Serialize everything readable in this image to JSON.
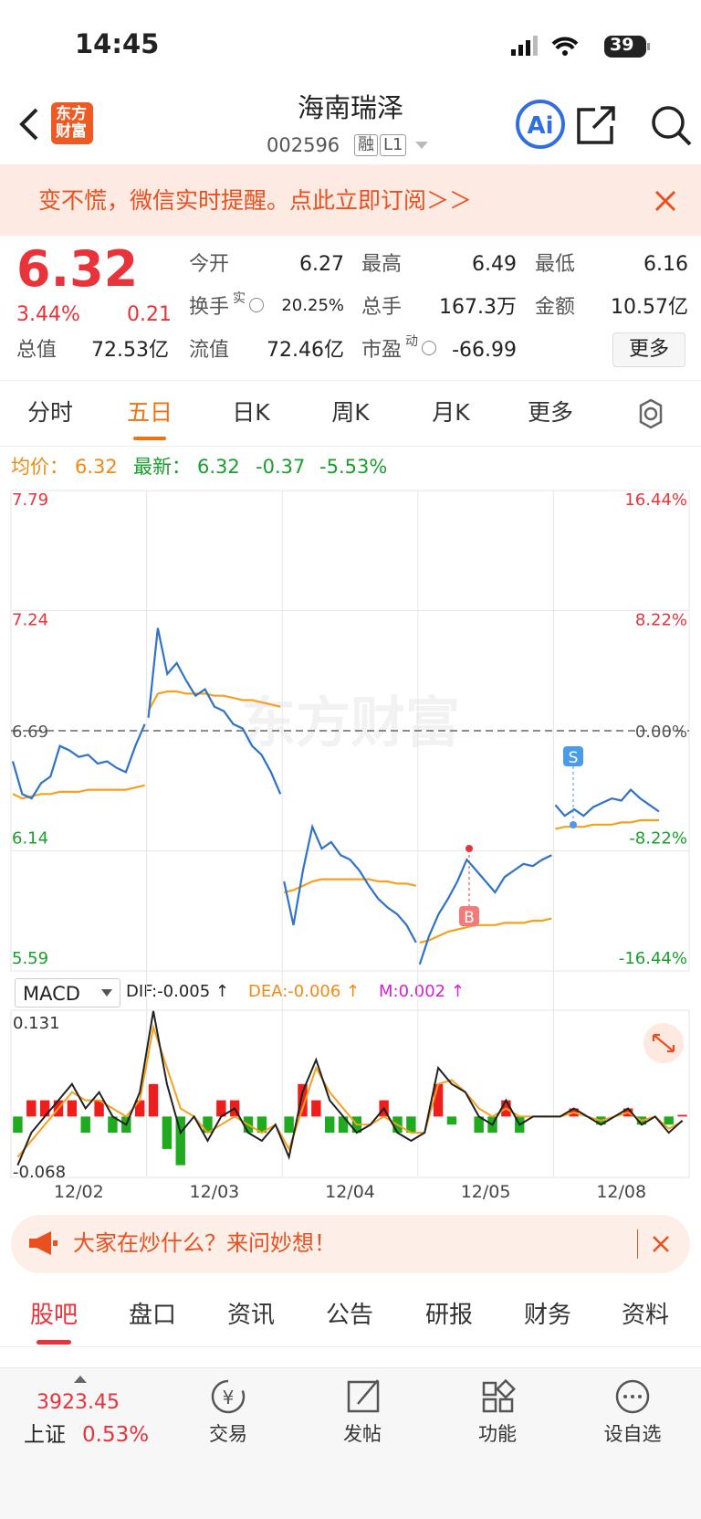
{
  "status": {
    "time": "14:45",
    "battery": "39"
  },
  "header": {
    "logo": [
      "东方",
      "财富"
    ],
    "title": "海南瑞泽",
    "code": "002596",
    "badges": [
      "融",
      "L1"
    ]
  },
  "banner": {
    "text": "变不慌，微信实时提醒。点此立即订阅＞＞"
  },
  "quote": {
    "price": "6.32",
    "change_pct": "3.44%",
    "change": "0.21",
    "total_value_label": "总值",
    "total_value": "72.53亿",
    "fields": [
      {
        "label": "今开",
        "value": "6.27"
      },
      {
        "label": "最高",
        "value": "6.49"
      },
      {
        "label": "最低",
        "value": "6.16"
      },
      {
        "label": "换手",
        "sup": "实",
        "value": "20.25%"
      },
      {
        "label": "总手",
        "value": "167.3万"
      },
      {
        "label": "金额",
        "value": "10.57亿"
      },
      {
        "label": "流值",
        "value": "72.46亿"
      },
      {
        "label": "市盈",
        "sup": "动",
        "value": "-66.99"
      }
    ],
    "more": "更多"
  },
  "chart_tabs": [
    "分时",
    "五日",
    "日K",
    "周K",
    "月K",
    "更多"
  ],
  "info": {
    "avg_label": "均价：",
    "avg": "6.32",
    "latest_label": "最新：",
    "latest": "6.32",
    "change": "-0.37",
    "change_pct": "-5.53%"
  },
  "chart_data": {
    "type": "line",
    "watermark": "东方财富",
    "ylim": [
      5.59,
      7.79
    ],
    "yticks": [
      7.79,
      7.24,
      6.69,
      6.14,
      5.59
    ],
    "pct_ticks": [
      "16.44%",
      "8.22%",
      "0.00%",
      "-8.22%",
      "-16.44%"
    ],
    "categories": [
      "12/02",
      "12/03",
      "12/04",
      "12/05",
      "12/08"
    ],
    "price_color": "#2f72c8",
    "avg_color": "#f5a11f",
    "price": [
      [
        6.55,
        6.4,
        6.38,
        6.45,
        6.48,
        6.62,
        6.6,
        6.57,
        6.58,
        6.54,
        6.55,
        6.52,
        6.5,
        6.62,
        6.72
      ],
      [
        6.75,
        7.16,
        6.95,
        7.0,
        6.92,
        6.85,
        6.88,
        6.8,
        6.78,
        6.72,
        6.7,
        6.62,
        6.58,
        6.5,
        6.4
      ],
      [
        6.0,
        5.8,
        6.05,
        6.25,
        6.15,
        6.18,
        6.12,
        6.1,
        6.05,
        5.98,
        5.92,
        5.88,
        5.85,
        5.8,
        5.72
      ],
      [
        5.62,
        5.75,
        5.85,
        5.92,
        6.0,
        6.1,
        6.05,
        6.0,
        5.95,
        6.02,
        6.05,
        6.08,
        6.07,
        6.1,
        6.12
      ],
      [
        6.35,
        6.3,
        6.33,
        6.3,
        6.34,
        6.36,
        6.38,
        6.37,
        6.42,
        6.38,
        6.35,
        6.32
      ]
    ],
    "avg": [
      [
        6.4,
        6.38,
        6.39,
        6.4,
        6.4,
        6.41,
        6.41,
        6.41,
        6.42,
        6.42,
        6.42,
        6.42,
        6.42,
        6.43,
        6.44
      ],
      [
        6.78,
        6.86,
        6.87,
        6.87,
        6.86,
        6.86,
        6.86,
        6.85,
        6.85,
        6.84,
        6.83,
        6.83,
        6.82,
        6.81,
        6.8
      ],
      [
        5.95,
        5.96,
        5.98,
        6.0,
        6.01,
        6.01,
        6.01,
        6.01,
        6.01,
        6.01,
        6.0,
        6.0,
        5.99,
        5.99,
        5.98
      ],
      [
        5.72,
        5.73,
        5.75,
        5.77,
        5.78,
        5.79,
        5.8,
        5.8,
        5.8,
        5.81,
        5.81,
        5.81,
        5.82,
        5.82,
        5.83
      ],
      [
        6.24,
        6.25,
        6.25,
        6.25,
        6.26,
        6.26,
        6.26,
        6.27,
        6.27,
        6.28,
        6.28,
        6.28
      ]
    ],
    "markers": [
      "B",
      "S"
    ]
  },
  "macd": {
    "type": "macd",
    "selector": "MACD",
    "dif_text": "DIF:-0.005 ↑",
    "dea_text": "DEA:-0.006 ↑",
    "m_text": "M:0.002 ↑",
    "ylim": [
      -0.075,
      0.131
    ],
    "yticks": [
      0.131,
      -0.068
    ],
    "dif": [
      -0.06,
      -0.02,
      0.0,
      0.02,
      0.04,
      0.01,
      0.03,
      0.0,
      -0.01,
      0.03,
      0.13,
      0.04,
      -0.02,
      0.0,
      -0.03,
      0.0,
      0.01,
      -0.02,
      -0.03,
      -0.01,
      -0.05,
      0.03,
      0.07,
      0.02,
      0.0,
      -0.02,
      -0.01,
      0.01,
      -0.02,
      -0.03,
      -0.02,
      0.06,
      0.04,
      0.03,
      0.0,
      -0.01,
      0.02,
      -0.01,
      0.0,
      0.0,
      0.0,
      0.01,
      0.0,
      -0.01,
      0.0,
      0.01,
      -0.01,
      0.0,
      -0.02,
      -0.005
    ],
    "dea": [
      -0.05,
      -0.03,
      -0.01,
      0.01,
      0.03,
      0.02,
      0.02,
      0.01,
      0.0,
      0.02,
      0.11,
      0.06,
      0.01,
      0.0,
      -0.02,
      -0.01,
      0.0,
      -0.01,
      -0.02,
      -0.01,
      -0.04,
      0.01,
      0.06,
      0.03,
      0.01,
      -0.01,
      -0.01,
      0.0,
      -0.01,
      -0.02,
      -0.02,
      0.04,
      0.045,
      0.03,
      0.01,
      0.0,
      0.01,
      0.0,
      0.0,
      0.0,
      0.0,
      0.005,
      0.0,
      -0.005,
      0.0,
      0.005,
      -0.005,
      0.0,
      -0.015,
      -0.006
    ],
    "bars": [
      -0.02,
      0.02,
      0.02,
      0.02,
      0.02,
      -0.02,
      0.02,
      -0.02,
      -0.02,
      0.02,
      0.04,
      -0.04,
      -0.06,
      0.0,
      -0.02,
      0.02,
      0.02,
      -0.02,
      -0.02,
      0.0,
      -0.02,
      0.04,
      0.02,
      -0.02,
      -0.02,
      -0.02,
      0.0,
      0.02,
      -0.02,
      -0.02,
      0.0,
      0.04,
      -0.01,
      0.0,
      -0.02,
      -0.02,
      0.02,
      -0.02,
      0.0,
      0.0,
      0.0,
      0.01,
      0.0,
      -0.01,
      0.0,
      0.01,
      -0.01,
      0.0,
      -0.01,
      0.002
    ]
  },
  "banner2": {
    "text": "大家在炒什么？来问妙想！"
  },
  "tabs": [
    "股吧",
    "盘口",
    "资讯",
    "公告",
    "研报",
    "财务",
    "资料"
  ],
  "bottom": {
    "index_value": "3923.45",
    "index_name": "上证",
    "index_change": "0.53%",
    "items": [
      "交易",
      "发帖",
      "功能",
      "设自选"
    ]
  }
}
